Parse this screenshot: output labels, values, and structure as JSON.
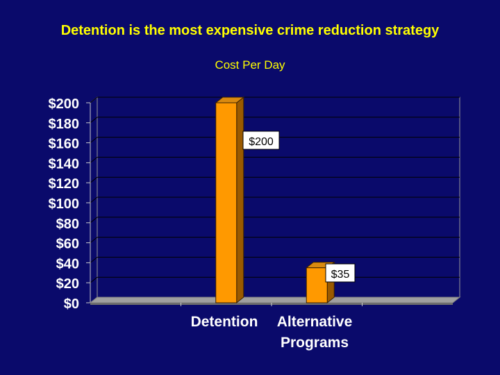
{
  "slide": {
    "title": "Detention is the most expensive crime reduction strategy"
  },
  "colors": {
    "background": "#0a0a6b",
    "title": "#ffff00",
    "bar": "#ff9900",
    "bar_side": "#9a5a00",
    "bar_top": "#d98a10",
    "gridline": "#000000",
    "plot_background": "#0a0a6b",
    "tick_label": "#ffffff",
    "data_label_bg": "#ffffff",
    "data_label_text": "#000000"
  },
  "chart_data": {
    "type": "bar",
    "title": "Cost Per Day",
    "xlabel": "",
    "ylabel": "",
    "categories": [
      "Detention",
      "Alternative Programs"
    ],
    "category_lines": [
      [
        "Detention"
      ],
      [
        "Alternative",
        "Programs"
      ]
    ],
    "values": [
      200,
      35
    ],
    "data_labels": [
      "$200",
      "$35"
    ],
    "ylim": [
      0,
      200
    ],
    "yticks": [
      0,
      20,
      40,
      60,
      80,
      100,
      120,
      140,
      160,
      180,
      200
    ],
    "ytick_labels": [
      "$0",
      "$20",
      "$40",
      "$60",
      "$80",
      "$100",
      "$120",
      "$140",
      "$160",
      "$180",
      "$200"
    ],
    "grid": true,
    "legend": "none",
    "style": "3d-column"
  }
}
